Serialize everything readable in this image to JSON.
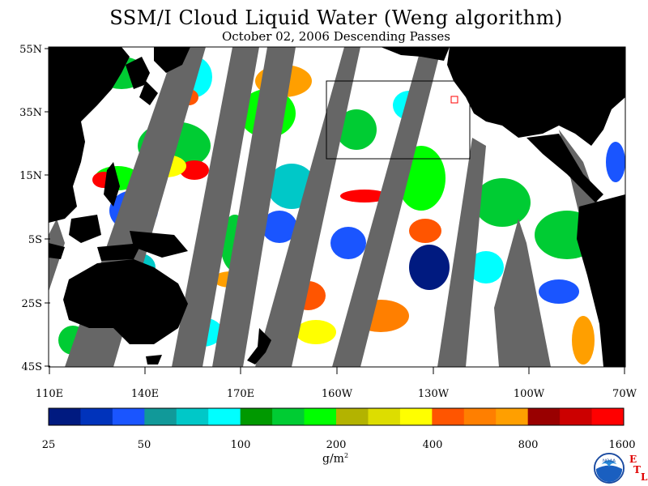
{
  "title": "SSM/I Cloud Liquid Water (Weng algorithm)",
  "subtitle": "October 02, 2006  Descending Passes",
  "lat_labels": [
    "55N",
    "35N",
    "15N",
    "5S",
    "25S",
    "45S"
  ],
  "lon_labels": [
    "110E",
    "140E",
    "170E",
    "160W",
    "130W",
    "100W",
    "70W"
  ],
  "colorbar": {
    "colors": [
      "#001a80",
      "#0033bb",
      "#1a55ff",
      "#119999",
      "#00c8c8",
      "#00ffff",
      "#009900",
      "#00cc33",
      "#00ff00",
      "#b3b300",
      "#dddd00",
      "#ffff00",
      "#ff5500",
      "#ff7f00",
      "#ff9f00",
      "#990000",
      "#cc0000",
      "#ff0000"
    ],
    "tick_labels": [
      "25",
      "50",
      "100",
      "200",
      "400",
      "800",
      "1600"
    ]
  },
  "unit_label": "g/m",
  "unit_sup": "2",
  "logo_text": "NOAA",
  "etl": [
    "E",
    "T",
    "L"
  ],
  "map_colors": {
    "land": "#000000",
    "missing": "#666666",
    "ocean": "#ffffff",
    "box": "#000000",
    "marker": "#ff0000"
  }
}
